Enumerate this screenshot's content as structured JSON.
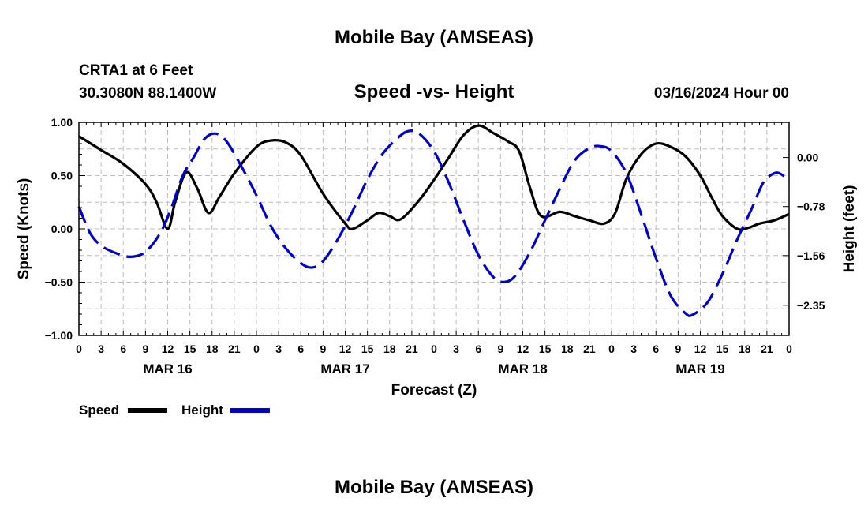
{
  "page": {
    "title": "Mobile Bay (AMSEAS)",
    "footer_title": "Mobile Bay (AMSEAS)",
    "station": "CRTA1 at 6 Feet",
    "coords": "30.3080N  88.1400W",
    "datetime": "03/16/2024 Hour 00"
  },
  "chart_data": {
    "type": "line",
    "title": "Speed -vs- Height",
    "xlabel": "Forecast (Z)",
    "ylabel_left": "Speed (Knots)",
    "ylabel_right": "Height (feet)",
    "x_unit": "forecast hour",
    "xlim": [
      0,
      96
    ],
    "ylim_left": [
      -1.0,
      1.0
    ],
    "ylim_right": [
      -2.83,
      0.56
    ],
    "left_ticks": [
      "1.00",
      "0.50",
      "0.00",
      "−0.50",
      "−1.00"
    ],
    "left_tick_values": [
      1.0,
      0.5,
      0.0,
      -0.5,
      -1.0
    ],
    "right_ticks": [
      "0.00",
      "−0.78",
      "−1.56",
      "−2.35"
    ],
    "right_tick_values": [
      0.0,
      -0.78,
      -1.56,
      -2.35
    ],
    "x_tick_hours": [
      0,
      3,
      6,
      9,
      12,
      15,
      18,
      21,
      24,
      27,
      30,
      33,
      36,
      39,
      42,
      45,
      48,
      51,
      54,
      57,
      60,
      63,
      66,
      69,
      72,
      75,
      78,
      81,
      84,
      87,
      90,
      93,
      96
    ],
    "x_tick_labels": [
      "0",
      "3",
      "6",
      "9",
      "12",
      "15",
      "18",
      "21",
      "0",
      "3",
      "6",
      "9",
      "12",
      "15",
      "18",
      "21",
      "0",
      "3",
      "6",
      "9",
      "12",
      "15",
      "18",
      "21",
      "0",
      "3",
      "6",
      "9",
      "12",
      "15",
      "18",
      "21",
      "0"
    ],
    "day_labels": [
      {
        "hour": 12,
        "label": "MAR 16"
      },
      {
        "hour": 36,
        "label": "MAR 17"
      },
      {
        "hour": 60,
        "label": "MAR 18"
      },
      {
        "hour": 84,
        "label": "MAR 19"
      }
    ],
    "grid": true,
    "legend": "bottom-left",
    "series": [
      {
        "name": "Speed",
        "axis": "left",
        "color": "#000000",
        "style": "solid",
        "points": [
          [
            0,
            0.87
          ],
          [
            3,
            0.74
          ],
          [
            6,
            0.61
          ],
          [
            9,
            0.42
          ],
          [
            10.5,
            0.25
          ],
          [
            12,
            0.0
          ],
          [
            13,
            0.25
          ],
          [
            14.5,
            0.53
          ],
          [
            16,
            0.38
          ],
          [
            17.5,
            0.15
          ],
          [
            19,
            0.3
          ],
          [
            21,
            0.52
          ],
          [
            24,
            0.77
          ],
          [
            26,
            0.83
          ],
          [
            28,
            0.81
          ],
          [
            30,
            0.69
          ],
          [
            33,
            0.33
          ],
          [
            36,
            0.05
          ],
          [
            37,
            0.0
          ],
          [
            39,
            0.08
          ],
          [
            40.5,
            0.15
          ],
          [
            42,
            0.12
          ],
          [
            43.5,
            0.09
          ],
          [
            46,
            0.27
          ],
          [
            48,
            0.46
          ],
          [
            50,
            0.67
          ],
          [
            52,
            0.88
          ],
          [
            54,
            0.97
          ],
          [
            56,
            0.9
          ],
          [
            58,
            0.82
          ],
          [
            59.5,
            0.73
          ],
          [
            61,
            0.38
          ],
          [
            62.5,
            0.12
          ],
          [
            65,
            0.16
          ],
          [
            67,
            0.12
          ],
          [
            69,
            0.08
          ],
          [
            71,
            0.05
          ],
          [
            72.5,
            0.15
          ],
          [
            74,
            0.47
          ],
          [
            76,
            0.7
          ],
          [
            78,
            0.8
          ],
          [
            80,
            0.77
          ],
          [
            82,
            0.68
          ],
          [
            84,
            0.5
          ],
          [
            85.5,
            0.3
          ],
          [
            87,
            0.12
          ],
          [
            89,
            0.0
          ],
          [
            90.5,
            0.01
          ],
          [
            92,
            0.05
          ],
          [
            94,
            0.08
          ],
          [
            96,
            0.14
          ]
        ]
      },
      {
        "name": "Height",
        "axis": "right",
        "color": "#0000cc",
        "style": "dashed",
        "points": [
          [
            0,
            -0.78
          ],
          [
            1.5,
            -1.2
          ],
          [
            3,
            -1.4
          ],
          [
            5,
            -1.52
          ],
          [
            7,
            -1.58
          ],
          [
            9,
            -1.5
          ],
          [
            11,
            -1.2
          ],
          [
            12.5,
            -0.8
          ],
          [
            14,
            -0.3
          ],
          [
            15.5,
            0.0
          ],
          [
            17,
            0.3
          ],
          [
            18.5,
            0.38
          ],
          [
            20,
            0.25
          ],
          [
            22,
            -0.15
          ],
          [
            24,
            -0.6
          ],
          [
            26,
            -1.1
          ],
          [
            28,
            -1.45
          ],
          [
            30,
            -1.68
          ],
          [
            31.5,
            -1.75
          ],
          [
            33,
            -1.65
          ],
          [
            35,
            -1.3
          ],
          [
            37,
            -0.85
          ],
          [
            39,
            -0.35
          ],
          [
            41,
            0.05
          ],
          [
            43,
            0.3
          ],
          [
            44.5,
            0.42
          ],
          [
            46,
            0.38
          ],
          [
            48,
            0.1
          ],
          [
            50,
            -0.4
          ],
          [
            52,
            -1.0
          ],
          [
            54,
            -1.55
          ],
          [
            56,
            -1.9
          ],
          [
            57.5,
            -1.98
          ],
          [
            59,
            -1.88
          ],
          [
            61,
            -1.5
          ],
          [
            63,
            -1.0
          ],
          [
            65,
            -0.5
          ],
          [
            67,
            -0.05
          ],
          [
            69,
            0.15
          ],
          [
            70.5,
            0.18
          ],
          [
            72,
            0.1
          ],
          [
            74,
            -0.25
          ],
          [
            76,
            -0.9
          ],
          [
            78,
            -1.6
          ],
          [
            80,
            -2.2
          ],
          [
            82,
            -2.48
          ],
          [
            83,
            -2.5
          ],
          [
            85,
            -2.3
          ],
          [
            87,
            -1.85
          ],
          [
            89,
            -1.3
          ],
          [
            91,
            -0.8
          ],
          [
            92.5,
            -0.4
          ],
          [
            94,
            -0.25
          ],
          [
            95,
            -0.27
          ],
          [
            96,
            -0.38
          ]
        ]
      }
    ]
  },
  "legend": {
    "speed_label": "Speed",
    "height_label": "Height"
  }
}
